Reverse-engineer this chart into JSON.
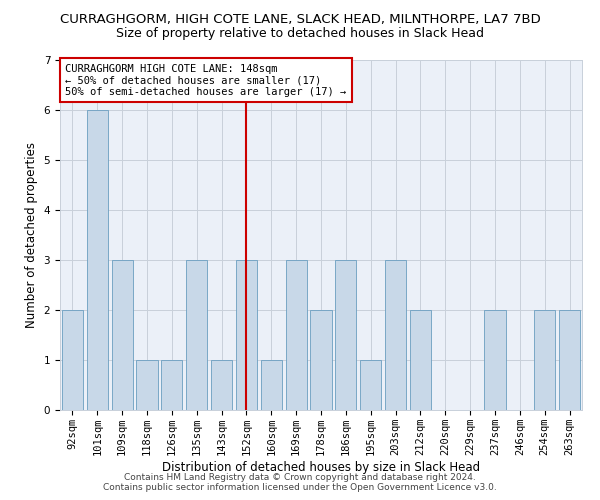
{
  "title": "CURRAGHGORM, HIGH COTE LANE, SLACK HEAD, MILNTHORPE, LA7 7BD",
  "subtitle": "Size of property relative to detached houses in Slack Head",
  "xlabel": "Distribution of detached houses by size in Slack Head",
  "ylabel": "Number of detached properties",
  "categories": [
    "92sqm",
    "101sqm",
    "109sqm",
    "118sqm",
    "126sqm",
    "135sqm",
    "143sqm",
    "152sqm",
    "160sqm",
    "169sqm",
    "178sqm",
    "186sqm",
    "195sqm",
    "203sqm",
    "212sqm",
    "220sqm",
    "229sqm",
    "237sqm",
    "246sqm",
    "254sqm",
    "263sqm"
  ],
  "values": [
    2,
    6,
    3,
    1,
    1,
    3,
    1,
    3,
    1,
    3,
    2,
    3,
    1,
    3,
    2,
    0,
    0,
    2,
    0,
    2,
    2
  ],
  "bar_color": "#C8D8E8",
  "bar_edge_color": "#6A9EC0",
  "highlight_index": 7,
  "highlight_line_color": "#CC0000",
  "annotation_text": "CURRAGHGORM HIGH COTE LANE: 148sqm\n← 50% of detached houses are smaller (17)\n50% of semi-detached houses are larger (17) →",
  "annotation_box_color": "#CC0000",
  "ylim": [
    0,
    7
  ],
  "yticks": [
    0,
    1,
    2,
    3,
    4,
    5,
    6,
    7
  ],
  "grid_color": "#C8D0DA",
  "background_color": "#EBF0F8",
  "footer_line1": "Contains HM Land Registry data © Crown copyright and database right 2024.",
  "footer_line2": "Contains public sector information licensed under the Open Government Licence v3.0.",
  "title_fontsize": 9.5,
  "subtitle_fontsize": 9,
  "axis_label_fontsize": 8.5,
  "tick_fontsize": 7.5,
  "annotation_fontsize": 7.5,
  "footer_fontsize": 6.5
}
